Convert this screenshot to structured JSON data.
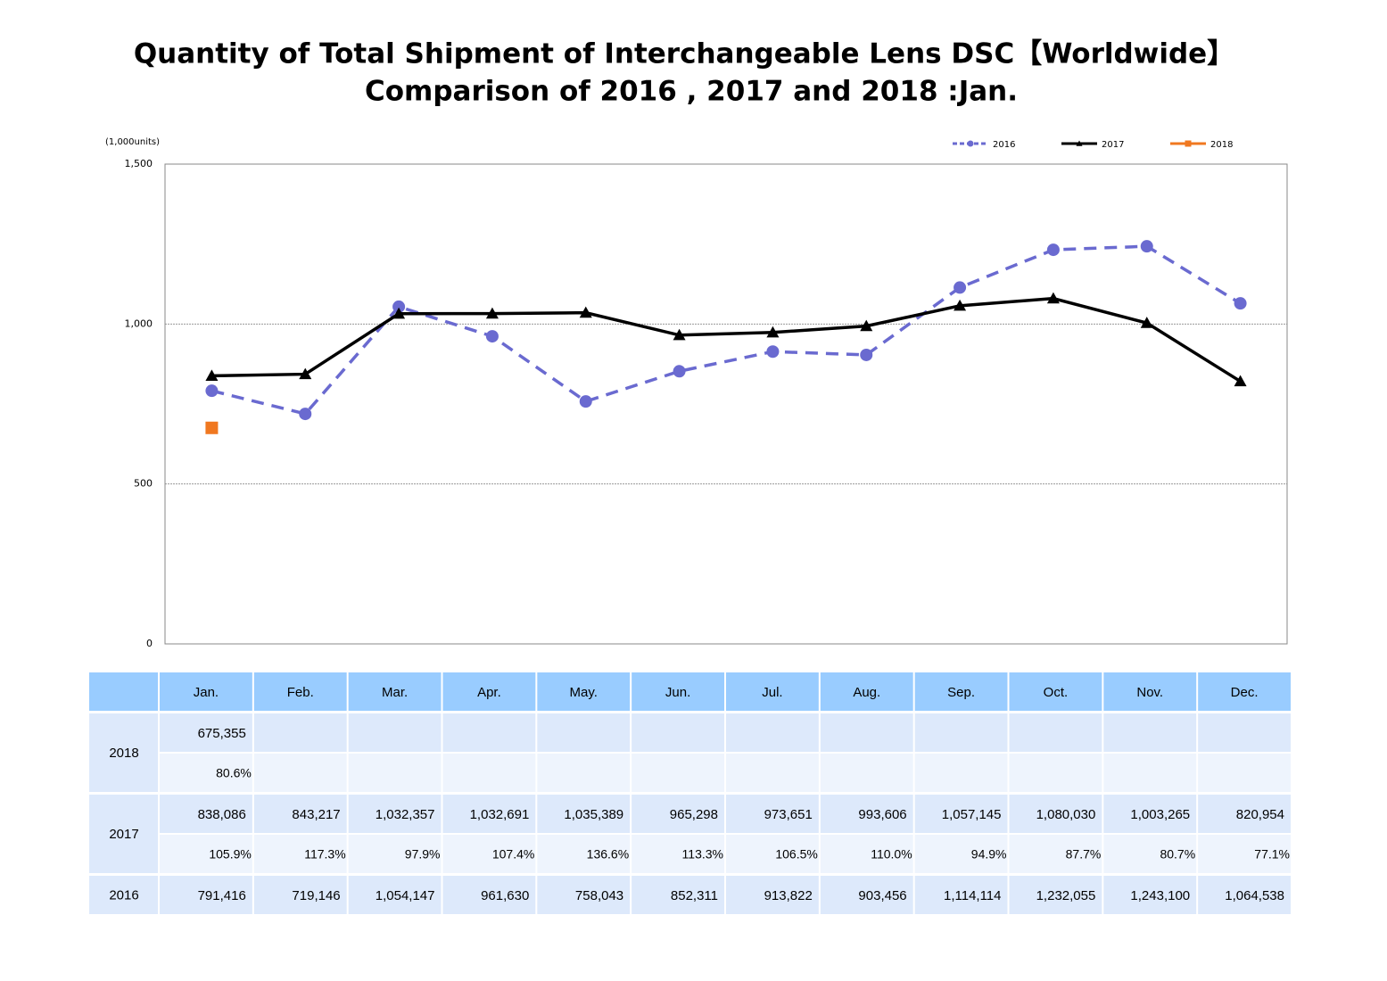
{
  "chart_data": {
    "type": "line",
    "title": "Quantity of Total Shipment of Interchangeable Lens DSC【Worldwide】",
    "subtitle": "Comparison of 2016 , 2017 and 2018 :Jan.",
    "y_label": "(1,000units)",
    "categories": [
      "Jan.",
      "Feb.",
      "Mar.",
      "Apr.",
      "May.",
      "Jun.",
      "Jul.",
      "Aug.",
      "Sep.",
      "Oct.",
      "Nov.",
      "Dec."
    ],
    "ylim": [
      0,
      1500
    ],
    "yticks": [
      0,
      500,
      {
        "value": 1000,
        "label": "1,000"
      },
      {
        "value": 1500,
        "label": "1,500"
      }
    ],
    "grid": true,
    "legend": "top-right",
    "series": [
      {
        "name": "2016",
        "color": "#6a6ad0",
        "dash": true,
        "marker": "circle",
        "values": [
          791.416,
          719.146,
          1054.147,
          961.63,
          758.043,
          852.311,
          913.822,
          903.456,
          1114.114,
          1232.055,
          1243.1,
          1064.538
        ],
        "value_labels": [
          "791,416",
          "719,146",
          "1,054,147",
          "961,630",
          "758,043",
          "852,311",
          "913,822",
          "903,456",
          "1,114,114",
          "1,232,055",
          "1,243,100",
          "1,064,538"
        ]
      },
      {
        "name": "2017",
        "color": "#000000",
        "dash": false,
        "marker": "triangle",
        "values": [
          838.086,
          843.217,
          1032.357,
          1032.691,
          1035.389,
          965.298,
          973.651,
          993.606,
          1057.145,
          1080.03,
          1003.265,
          820.954
        ],
        "value_labels": [
          "838,086",
          "843,217",
          "1,032,357",
          "1,032,691",
          "1,035,389",
          "965,298",
          "973,651",
          "993,606",
          "1,057,145",
          "1,080,030",
          "1,003,265",
          "820,954"
        ],
        "yoy_labels": [
          "105.9%",
          "117.3%",
          "97.9%",
          "107.4%",
          "136.6%",
          "113.3%",
          "106.5%",
          "110.0%",
          "94.9%",
          "87.7%",
          "80.7%",
          "77.1%"
        ]
      },
      {
        "name": "2018",
        "color": "#f07820",
        "dash": false,
        "marker": "square",
        "values": [
          675.355,
          null,
          null,
          null,
          null,
          null,
          null,
          null,
          null,
          null,
          null,
          null
        ],
        "value_labels": [
          "675,355",
          null,
          null,
          null,
          null,
          null,
          null,
          null,
          null,
          null,
          null,
          null
        ],
        "yoy_labels": [
          "80.6%",
          null,
          null,
          null,
          null,
          null,
          null,
          null,
          null,
          null,
          null,
          null
        ]
      }
    ]
  }
}
